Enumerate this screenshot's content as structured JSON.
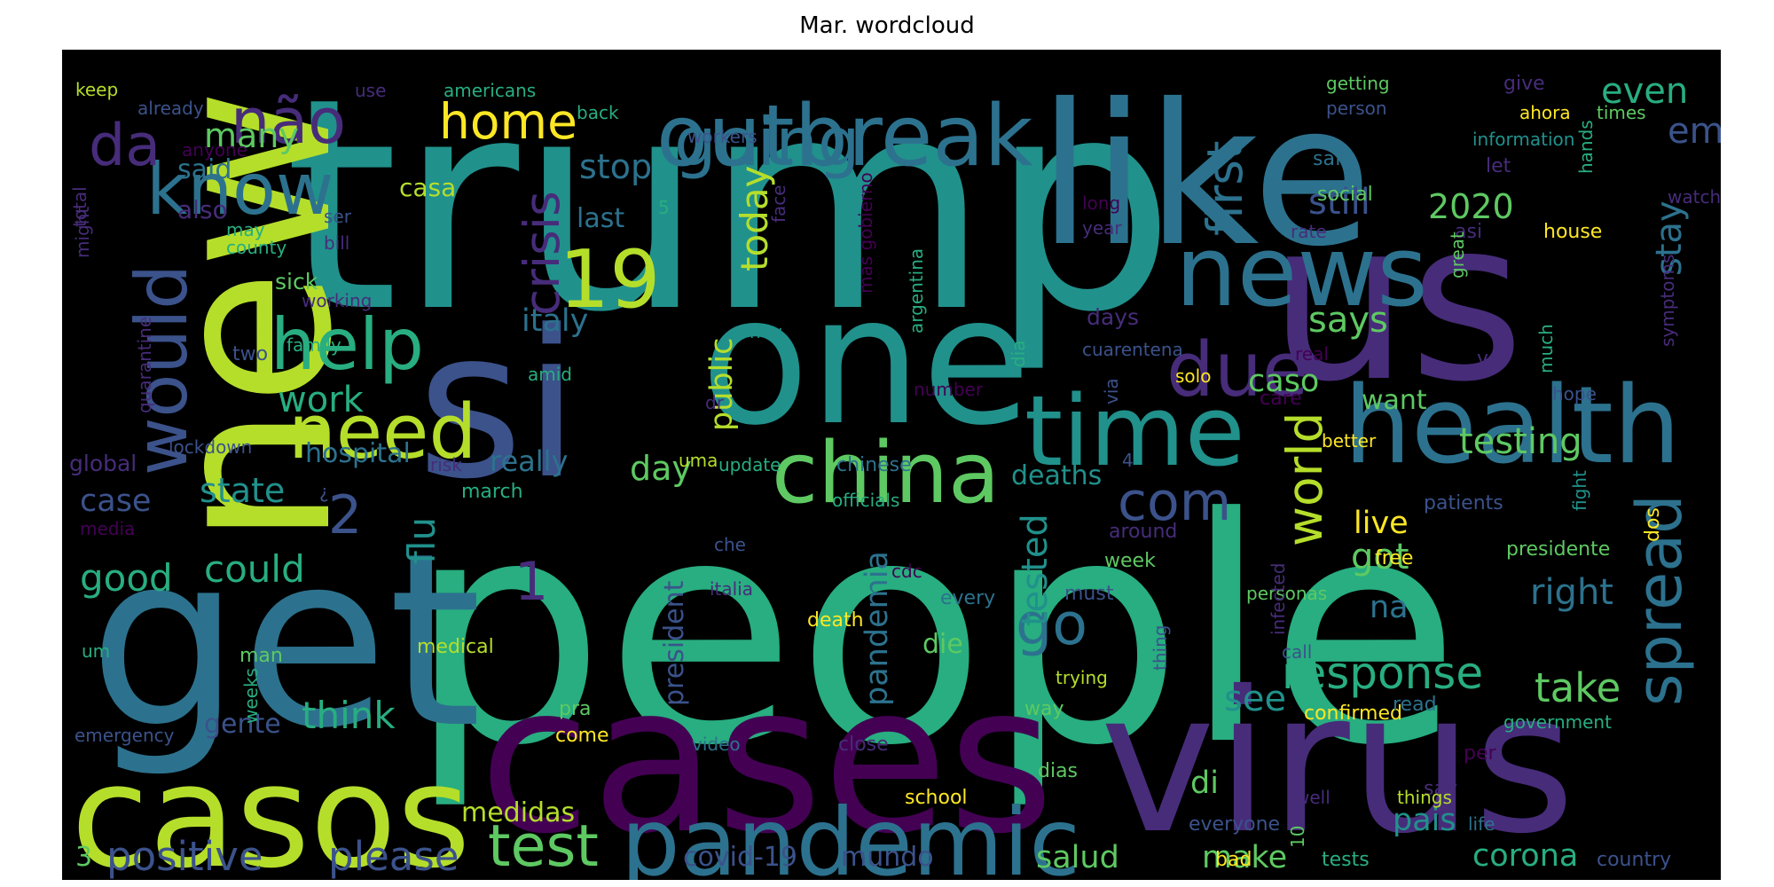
{
  "title": "Mar. wordcloud",
  "palette": {
    "purple": "#440154",
    "indigo": "#472c7a",
    "blue": "#3b528b",
    "steel": "#2c728e",
    "teal": "#21918c",
    "green": "#28ae80",
    "lime": "#5ec962",
    "yellow": "#b5de2b",
    "gold": "#fde725"
  },
  "words": [
    {
      "text": "trump",
      "color": "teal"
    },
    {
      "text": "people",
      "color": "green"
    },
    {
      "text": "like",
      "color": "steel"
    },
    {
      "text": "us",
      "color": "indigo"
    },
    {
      "text": "new",
      "color": "yellow"
    },
    {
      "text": "get",
      "color": "steel"
    },
    {
      "text": "si",
      "color": "blue"
    },
    {
      "text": "one",
      "color": "teal"
    },
    {
      "text": "virus",
      "color": "indigo"
    },
    {
      "text": "cases",
      "color": "purple"
    },
    {
      "text": "casos",
      "color": "yellow"
    },
    {
      "text": "news",
      "color": "steel"
    },
    {
      "text": "health",
      "color": "steel"
    },
    {
      "text": "time",
      "color": "teal"
    },
    {
      "text": "outbreak",
      "color": "steel"
    },
    {
      "text": "going",
      "color": "steel"
    },
    {
      "text": "china",
      "color": "lime"
    },
    {
      "text": "pandemic",
      "color": "steel"
    },
    {
      "text": "due",
      "color": "indigo"
    },
    {
      "text": "know",
      "color": "steel"
    },
    {
      "text": "não",
      "color": "indigo"
    },
    {
      "text": "da",
      "color": "indigo"
    },
    {
      "text": "help",
      "color": "green"
    },
    {
      "text": "need",
      "color": "yellow"
    },
    {
      "text": "would",
      "color": "blue"
    },
    {
      "text": "home",
      "color": "gold"
    },
    {
      "text": "19",
      "color": "yellow"
    },
    {
      "text": "crisis",
      "color": "indigo"
    },
    {
      "text": "first",
      "color": "steel"
    },
    {
      "text": "spread",
      "color": "steel"
    },
    {
      "text": "com",
      "color": "blue"
    },
    {
      "text": "world",
      "color": "yellow"
    },
    {
      "text": "test",
      "color": "lime"
    },
    {
      "text": "positive",
      "color": "blue"
    },
    {
      "text": "please",
      "color": "blue"
    },
    {
      "text": "response",
      "color": "green"
    },
    {
      "text": "go",
      "color": "steel"
    },
    {
      "text": "take",
      "color": "lime"
    },
    {
      "text": "testing",
      "color": "lime"
    },
    {
      "text": "em",
      "color": "blue"
    },
    {
      "text": "even",
      "color": "green"
    },
    {
      "text": "stay",
      "color": "steel"
    },
    {
      "text": "still",
      "color": "blue"
    },
    {
      "text": "2020",
      "color": "lime"
    },
    {
      "text": "says",
      "color": "lime"
    },
    {
      "text": "caso",
      "color": "lime"
    },
    {
      "text": "many",
      "color": "lime"
    },
    {
      "text": "said",
      "color": "steel"
    },
    {
      "text": "stop",
      "color": "steel"
    },
    {
      "text": "last",
      "color": "steel"
    },
    {
      "text": "casa",
      "color": "yellow"
    },
    {
      "text": "today",
      "color": "yellow"
    },
    {
      "text": "italy",
      "color": "steel"
    },
    {
      "text": "public",
      "color": "yellow"
    },
    {
      "text": "work",
      "color": "green"
    },
    {
      "text": "hospital",
      "color": "steel"
    },
    {
      "text": "really",
      "color": "steel"
    },
    {
      "text": "day",
      "color": "lime"
    },
    {
      "text": "state",
      "color": "teal"
    },
    {
      "text": "case",
      "color": "blue"
    },
    {
      "text": "2",
      "color": "blue"
    },
    {
      "text": "flu",
      "color": "teal"
    },
    {
      "text": "could",
      "color": "green"
    },
    {
      "text": "good",
      "color": "green"
    },
    {
      "text": "1",
      "color": "indigo"
    },
    {
      "text": "think",
      "color": "green"
    },
    {
      "text": "tested",
      "color": "teal"
    },
    {
      "text": "deaths",
      "color": "teal"
    },
    {
      "text": "see",
      "color": "teal"
    },
    {
      "text": "got",
      "color": "lime"
    },
    {
      "text": "live",
      "color": "gold"
    },
    {
      "text": "right",
      "color": "steel"
    },
    {
      "text": "na",
      "color": "steel"
    },
    {
      "text": "di",
      "color": "lime"
    },
    {
      "text": "make",
      "color": "lime"
    },
    {
      "text": "corona",
      "color": "green"
    },
    {
      "text": "pais",
      "color": "teal"
    },
    {
      "text": "salud",
      "color": "lime"
    },
    {
      "text": "mundo",
      "color": "blue"
    },
    {
      "text": "covid‑19",
      "color": "blue"
    },
    {
      "text": "medidas",
      "color": "yellow"
    },
    {
      "text": "3",
      "color": "lime"
    },
    {
      "text": "pandemia",
      "color": "steel"
    },
    {
      "text": "president",
      "color": "blue"
    },
    {
      "text": "die",
      "color": "lime"
    },
    {
      "text": "gente",
      "color": "blue"
    },
    {
      "text": "want",
      "color": "lime"
    },
    {
      "text": "keep",
      "color": "yellow"
    },
    {
      "text": "already",
      "color": "blue"
    },
    {
      "text": "use",
      "color": "indigo"
    },
    {
      "text": "americans",
      "color": "green"
    },
    {
      "text": "back",
      "color": "green"
    },
    {
      "text": "workers",
      "color": "blue"
    },
    {
      "text": "anyone",
      "color": "purple"
    },
    {
      "text": "total",
      "color": "indigo"
    },
    {
      "text": "may",
      "color": "green"
    },
    {
      "text": "might",
      "color": "indigo"
    },
    {
      "text": "also",
      "color": "indigo"
    },
    {
      "text": "county",
      "color": "green"
    },
    {
      "text": "ser",
      "color": "blue"
    },
    {
      "text": "bill",
      "color": "indigo"
    },
    {
      "text": "5",
      "color": "green"
    },
    {
      "text": "face",
      "color": "indigo"
    },
    {
      "text": "mas gobierno",
      "color": "purple"
    },
    {
      "text": "argentina",
      "color": "green"
    },
    {
      "text": "sick",
      "color": "lime"
    },
    {
      "text": "working",
      "color": "indigo"
    },
    {
      "text": "quarantine",
      "color": "indigo"
    },
    {
      "text": "two",
      "color": "blue"
    },
    {
      "text": "family",
      "color": "green"
    },
    {
      "text": "amid",
      "color": "green"
    },
    {
      "text": "hoy",
      "color": "teal"
    },
    {
      "text": "lockdown",
      "color": "blue"
    },
    {
      "text": "global",
      "color": "indigo"
    },
    {
      "text": "risk",
      "color": "indigo"
    },
    {
      "text": "march",
      "color": "green"
    },
    {
      "text": "¿",
      "color": "blue"
    },
    {
      "text": "media",
      "color": "purple"
    },
    {
      "text": "man",
      "color": "lime"
    },
    {
      "text": "um",
      "color": "green"
    },
    {
      "text": "medical",
      "color": "yellow"
    },
    {
      "text": "weeks",
      "color": "green"
    },
    {
      "text": "emergency",
      "color": "blue"
    },
    {
      "text": "dr",
      "color": "indigo"
    },
    {
      "text": "number",
      "color": "purple"
    },
    {
      "text": "uma",
      "color": "yellow"
    },
    {
      "text": "update",
      "color": "green"
    },
    {
      "text": "chinese",
      "color": "steel"
    },
    {
      "text": "officials",
      "color": "green"
    },
    {
      "text": "che",
      "color": "blue"
    },
    {
      "text": "cdc",
      "color": "purple"
    },
    {
      "text": "every",
      "color": "steel"
    },
    {
      "text": "italia",
      "color": "indigo"
    },
    {
      "text": "death",
      "color": "gold"
    },
    {
      "text": "pra",
      "color": "lime"
    },
    {
      "text": "come",
      "color": "gold"
    },
    {
      "text": "video",
      "color": "steel"
    },
    {
      "text": "close",
      "color": "indigo"
    },
    {
      "text": "school",
      "color": "gold"
    },
    {
      "text": "getting",
      "color": "lime"
    },
    {
      "text": "person",
      "color": "blue"
    },
    {
      "text": "give",
      "color": "indigo"
    },
    {
      "text": "ahora",
      "color": "gold"
    },
    {
      "text": "times",
      "color": "lime"
    },
    {
      "text": "information",
      "color": "teal"
    },
    {
      "text": "let",
      "color": "indigo"
    },
    {
      "text": "safe",
      "color": "steel"
    },
    {
      "text": "social",
      "color": "lime"
    },
    {
      "text": "hands",
      "color": "green"
    },
    {
      "text": "watch",
      "color": "indigo"
    },
    {
      "text": "long",
      "color": "purple"
    },
    {
      "text": "year",
      "color": "indigo"
    },
    {
      "text": "rate",
      "color": "indigo"
    },
    {
      "text": "asi",
      "color": "indigo"
    },
    {
      "text": "house",
      "color": "gold"
    },
    {
      "text": "great",
      "color": "lime"
    },
    {
      "text": "much",
      "color": "green"
    },
    {
      "text": "symptoms",
      "color": "indigo"
    },
    {
      "text": "days",
      "color": "indigo"
    },
    {
      "text": "dia",
      "color": "green"
    },
    {
      "text": "cuarentena",
      "color": "blue"
    },
    {
      "text": "via",
      "color": "blue"
    },
    {
      "text": "real",
      "color": "purple"
    },
    {
      "text": "va",
      "color": "indigo"
    },
    {
      "text": "hope",
      "color": "blue"
    },
    {
      "text": "solo",
      "color": "gold"
    },
    {
      "text": "care",
      "color": "purple"
    },
    {
      "text": "better",
      "color": "gold"
    },
    {
      "text": "4",
      "color": "blue"
    },
    {
      "text": "patients",
      "color": "blue"
    },
    {
      "text": "fight",
      "color": "teal"
    },
    {
      "text": "dos",
      "color": "gold"
    },
    {
      "text": "presidente",
      "color": "lime"
    },
    {
      "text": "around",
      "color": "indigo"
    },
    {
      "text": "week",
      "color": "lime"
    },
    {
      "text": "free",
      "color": "gold"
    },
    {
      "text": "must",
      "color": "blue"
    },
    {
      "text": "thing",
      "color": "blue"
    },
    {
      "text": "personas",
      "color": "lime"
    },
    {
      "text": "infected",
      "color": "indigo"
    },
    {
      "text": "call",
      "color": "blue"
    },
    {
      "text": "trying",
      "color": "yellow"
    },
    {
      "text": "way",
      "color": "lime"
    },
    {
      "text": "confirmed",
      "color": "gold"
    },
    {
      "text": "read",
      "color": "steel"
    },
    {
      "text": "government",
      "color": "green"
    },
    {
      "text": "per",
      "color": "purple"
    },
    {
      "text": "say",
      "color": "indigo"
    },
    {
      "text": "dias",
      "color": "lime"
    },
    {
      "text": "things",
      "color": "yellow"
    },
    {
      "text": "life",
      "color": "steel"
    },
    {
      "text": "well",
      "color": "indigo"
    },
    {
      "text": "10",
      "color": "lime"
    },
    {
      "text": "everyone",
      "color": "blue"
    },
    {
      "text": "bad",
      "color": "gold"
    },
    {
      "text": "tests",
      "color": "green"
    },
    {
      "text": "country",
      "color": "blue"
    },
    {
      "text": "support",
      "color": "purple"
    }
  ]
}
